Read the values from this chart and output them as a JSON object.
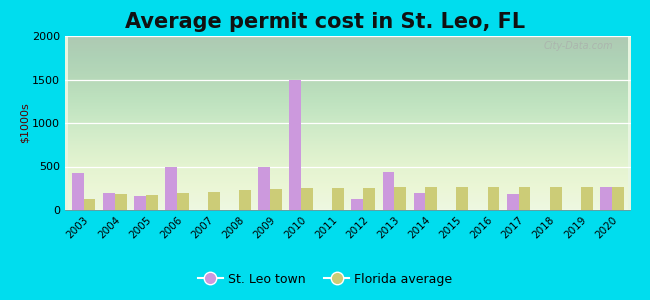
{
  "title": "Average permit cost in St. Leo, FL",
  "ylabel": "$1000s",
  "years": [
    2003,
    2004,
    2005,
    2006,
    2007,
    2008,
    2009,
    2010,
    2011,
    2012,
    2013,
    2014,
    2015,
    2016,
    2017,
    2018,
    2019,
    2020
  ],
  "st_leo": [
    430,
    195,
    160,
    490,
    0,
    0,
    490,
    1490,
    0,
    130,
    440,
    200,
    0,
    0,
    180,
    0,
    0,
    270
  ],
  "florida": [
    130,
    180,
    170,
    200,
    210,
    230,
    240,
    250,
    250,
    255,
    260,
    265,
    270,
    270,
    265,
    270,
    260,
    265
  ],
  "st_leo_color": "#cc99dd",
  "florida_color": "#cccc77",
  "outer_bg": "#00ddee",
  "plot_bg_top": "#e8f5e0",
  "plot_bg_bottom": "#f0faf0",
  "ylim": [
    0,
    2000
  ],
  "yticks": [
    0,
    500,
    1000,
    1500,
    2000
  ],
  "title_fontsize": 15,
  "bar_width": 0.38,
  "grid_color": "#ffffff",
  "watermark": "City-Data.com"
}
